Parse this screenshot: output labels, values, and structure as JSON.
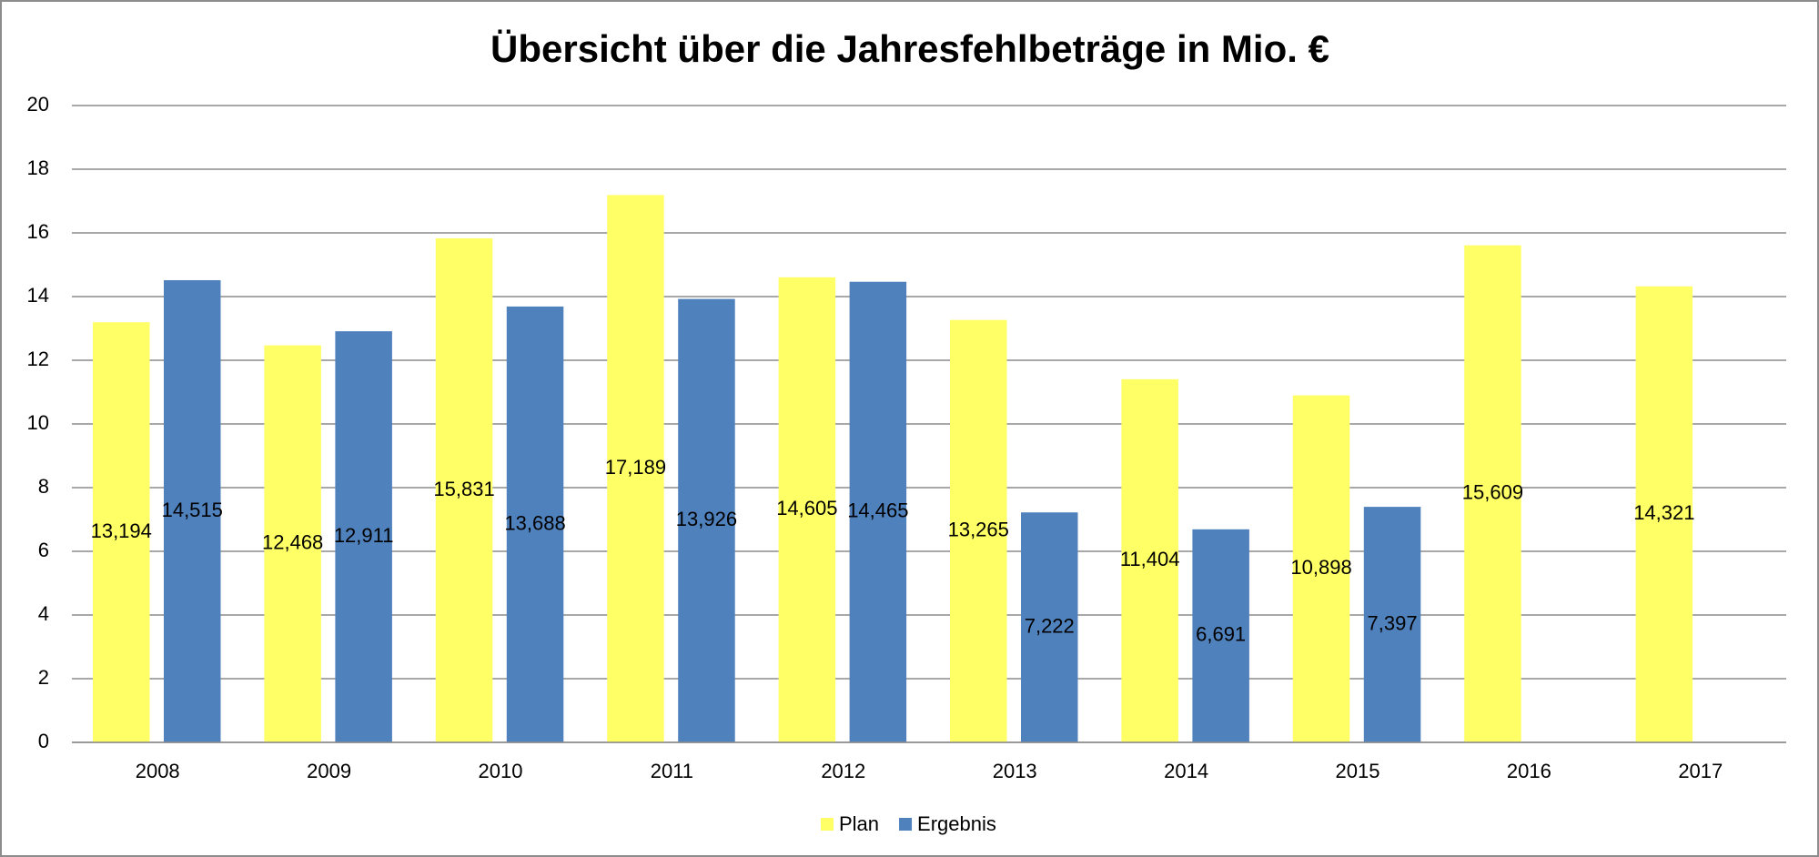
{
  "chart_data": {
    "type": "bar",
    "title": "Übersicht über die Jahresfehlbeträge in Mio. €",
    "categories": [
      "2008",
      "2009",
      "2010",
      "2011",
      "2012",
      "2013",
      "2014",
      "2015",
      "2016",
      "2017"
    ],
    "series": [
      {
        "name": "Plan",
        "color": "#ffff66",
        "values": [
          13.194,
          12.468,
          15.831,
          17.189,
          14.605,
          13.265,
          11.404,
          10.898,
          15.609,
          14.321
        ],
        "value_labels": [
          "13,194",
          "12,468",
          "15,831",
          "17,189",
          "14,605",
          "13,265",
          "11,404",
          "10,898",
          "15,609",
          "14,321"
        ]
      },
      {
        "name": "Ergebnis",
        "color": "#4f81bd",
        "values": [
          14.515,
          12.911,
          13.688,
          13.926,
          14.465,
          7.222,
          6.691,
          7.397,
          null,
          null
        ],
        "value_labels": [
          "14,515",
          "12,911",
          "13,688",
          "13,926",
          "14,465",
          "7,222",
          "6,691",
          "7,397",
          null,
          null
        ]
      }
    ],
    "ylim": [
      0,
      20
    ],
    "yticks": [
      0,
      2,
      4,
      6,
      8,
      10,
      12,
      14,
      16,
      18,
      20
    ],
    "grid": true,
    "legend": "bottom"
  }
}
